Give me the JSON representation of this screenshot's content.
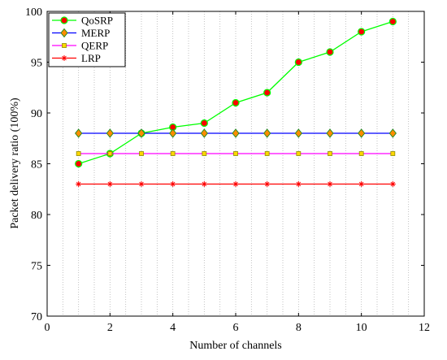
{
  "chart_data": {
    "type": "line",
    "xlabel": "Number of channels",
    "ylabel": "Packet delivery ratio (100%)",
    "xlim": [
      0,
      12
    ],
    "ylim": [
      70,
      100
    ],
    "xticks": [
      0,
      2,
      4,
      6,
      8,
      10,
      12
    ],
    "yticks": [
      70,
      75,
      80,
      85,
      90,
      95,
      100
    ],
    "grid": "vertical dotted",
    "legend_position": "top-left",
    "x": [
      1,
      2,
      3,
      4,
      5,
      6,
      7,
      8,
      9,
      10,
      11
    ],
    "series": [
      {
        "name": "QoSRP",
        "values": [
          85,
          86,
          88,
          88.6,
          89,
          91,
          92,
          95,
          96,
          98,
          99
        ],
        "color": "#00ff00",
        "marker_fill": "#ff0000",
        "marker": "circle"
      },
      {
        "name": "MERP",
        "values": [
          88,
          88,
          88,
          88,
          88,
          88,
          88,
          88,
          88,
          88,
          88
        ],
        "color": "#0000ff",
        "marker_fill": "#ff8c00",
        "marker": "diamond"
      },
      {
        "name": "QERP",
        "values": [
          86,
          86,
          86,
          86,
          86,
          86,
          86,
          86,
          86,
          86,
          86
        ],
        "color": "#ff00ff",
        "marker_fill": "#ffd700",
        "marker": "square"
      },
      {
        "name": "LRP",
        "values": [
          83,
          83,
          83,
          83,
          83,
          83,
          83,
          83,
          83,
          83,
          83
        ],
        "color": "#ff0000",
        "marker_fill": "#ff0000",
        "marker": "asterisk"
      }
    ]
  }
}
